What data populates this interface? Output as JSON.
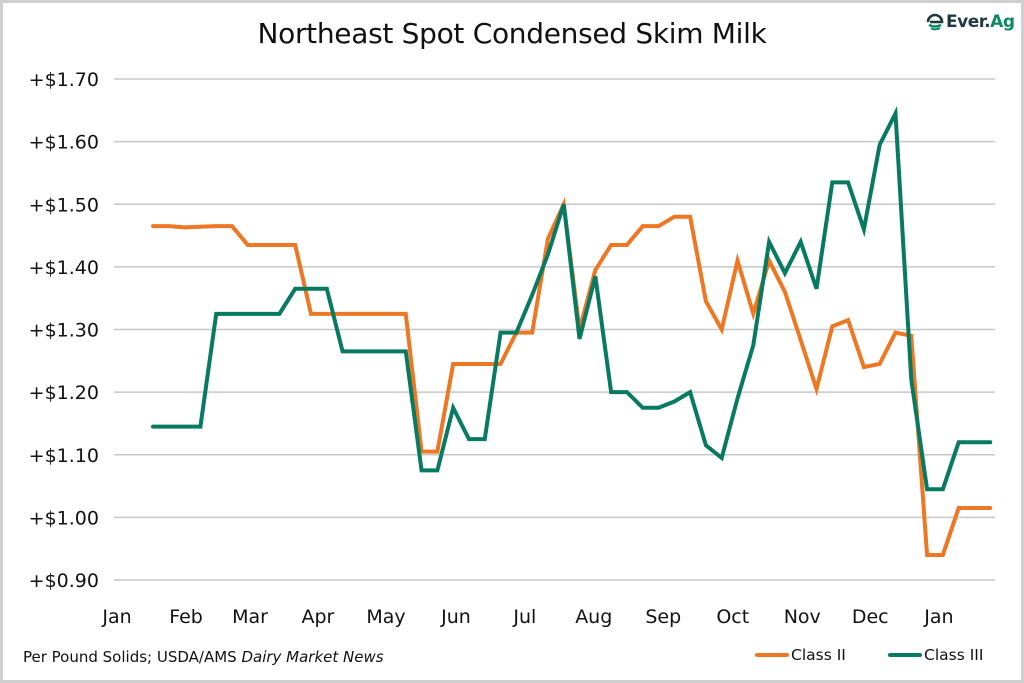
{
  "header": {
    "title": "Northeast Spot Condensed Skim Milk",
    "logo_text_main": "Ever.",
    "logo_text_accent": "Ag"
  },
  "footer": {
    "source_plain": "Per Pound Solids; USDA/AMS ",
    "source_italic": "Dairy Market News"
  },
  "legend": {
    "items": [
      {
        "label": "Class II",
        "color": "#ee7723"
      },
      {
        "label": "Class III",
        "color": "#077a61"
      }
    ]
  },
  "chart_data": {
    "type": "line",
    "title": "Northeast Spot Condensed Skim Milk",
    "xlabel": "",
    "ylabel": "",
    "x_unit": "weekly observations (index from first week)",
    "xlim": [
      -2.47,
      53.3
    ],
    "ylim": [
      0.9,
      1.7
    ],
    "grid": true,
    "legend_position": "bottom-right",
    "y_ticks": [
      {
        "value": 1.7,
        "label": "+$1.70"
      },
      {
        "value": 1.6,
        "label": "+$1.60"
      },
      {
        "value": 1.5,
        "label": "+$1.50"
      },
      {
        "value": 1.4,
        "label": "+$1.40"
      },
      {
        "value": 1.3,
        "label": "+$1.30"
      },
      {
        "value": 1.2,
        "label": "+$1.20"
      },
      {
        "value": 1.1,
        "label": "+$1.10"
      },
      {
        "value": 1.0,
        "label": "+$1.00"
      },
      {
        "value": 0.9,
        "label": "+$0.90"
      }
    ],
    "x_ticks": [
      {
        "pos": -2.28,
        "label": "Jan"
      },
      {
        "pos": 2.09,
        "label": "Feb"
      },
      {
        "pos": 6.14,
        "label": "Mar"
      },
      {
        "pos": 10.44,
        "label": "Apr"
      },
      {
        "pos": 14.75,
        "label": "May"
      },
      {
        "pos": 19.18,
        "label": "Jun"
      },
      {
        "pos": 23.54,
        "label": "Jul"
      },
      {
        "pos": 27.9,
        "label": "Aug"
      },
      {
        "pos": 32.3,
        "label": "Sep"
      },
      {
        "pos": 36.7,
        "label": "Oct"
      },
      {
        "pos": 41.1,
        "label": "Nov"
      },
      {
        "pos": 45.4,
        "label": "Dec"
      },
      {
        "pos": 49.75,
        "label": "Jan"
      }
    ],
    "series": [
      {
        "name": "Class II",
        "color": "#ee7723",
        "values": [
          1.465,
          1.465,
          1.463,
          1.464,
          1.465,
          1.465,
          1.435,
          1.435,
          1.435,
          1.435,
          1.325,
          1.325,
          1.325,
          1.325,
          1.325,
          1.325,
          1.325,
          1.105,
          1.105,
          1.245,
          1.245,
          1.245,
          1.245,
          1.295,
          1.295,
          1.445,
          1.5,
          1.3,
          1.395,
          1.435,
          1.435,
          1.465,
          1.465,
          1.48,
          1.48,
          1.345,
          1.3,
          1.41,
          1.325,
          1.41,
          1.36,
          1.283,
          1.205,
          1.305,
          1.315,
          1.24,
          1.245,
          1.295,
          1.29,
          0.94,
          0.94,
          1.015,
          1.015,
          1.015
        ]
      },
      {
        "name": "Class III",
        "color": "#077a61",
        "values": [
          1.145,
          1.145,
          1.145,
          1.145,
          1.325,
          1.325,
          1.325,
          1.325,
          1.325,
          1.365,
          1.365,
          1.365,
          1.265,
          1.265,
          1.265,
          1.265,
          1.265,
          1.075,
          1.075,
          1.175,
          1.125,
          1.125,
          1.295,
          1.295,
          1.355,
          1.42,
          1.5,
          1.285,
          1.385,
          1.2,
          1.2,
          1.175,
          1.175,
          1.185,
          1.2,
          1.115,
          1.095,
          1.19,
          1.275,
          1.44,
          1.39,
          1.44,
          1.365,
          1.535,
          1.535,
          1.46,
          1.595,
          1.645,
          1.22,
          1.045,
          1.045,
          1.12,
          1.12,
          1.12
        ]
      }
    ]
  }
}
